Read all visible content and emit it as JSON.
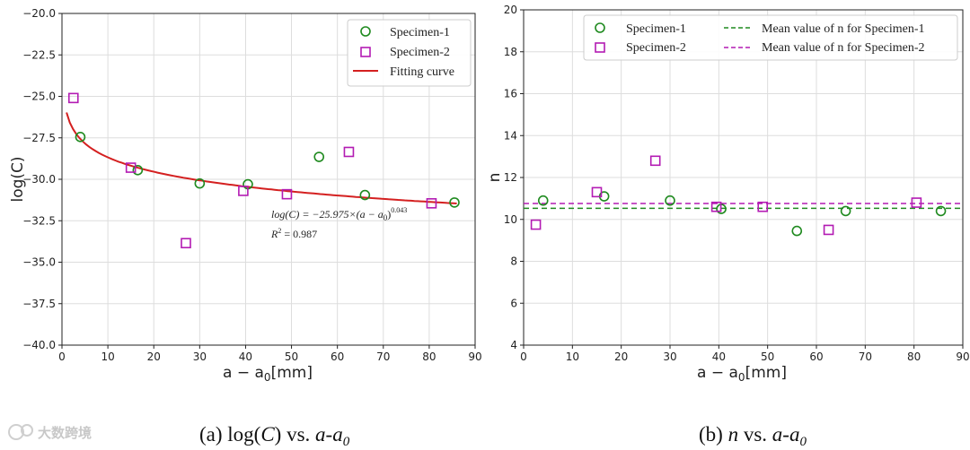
{
  "chart_data": [
    {
      "type": "scatter",
      "id": "a",
      "xlabel": "a − a",
      "xlabel_sub": "0",
      "xlabel_unit": "[mm]",
      "ylabel": "log(C)",
      "xlim": [
        0,
        90
      ],
      "ylim": [
        -40,
        -20
      ],
      "xticks": [
        0,
        10,
        20,
        30,
        40,
        50,
        60,
        70,
        80,
        90
      ],
      "yticks": [
        -40,
        -37.5,
        -35,
        -32.5,
        -30,
        -27.5,
        -25,
        -22.5,
        -20
      ],
      "ytick_labels": [
        "−40.0",
        "−37.5",
        "−35.0",
        "−32.5",
        "−30.0",
        "−27.5",
        "−25.0",
        "−22.5",
        "−20.0"
      ],
      "grid": true,
      "legend_position": "top-right",
      "series": [
        {
          "name": "Specimen-1",
          "marker": "circle",
          "color": "#1f8a1f",
          "x": [
            4,
            16.5,
            30,
            40.5,
            56,
            66,
            85.5
          ],
          "y": [
            -27.45,
            -29.45,
            -30.25,
            -30.3,
            -28.65,
            -30.95,
            -31.4
          ]
        },
        {
          "name": "Specimen-2",
          "marker": "square",
          "color": "#b31bb3",
          "x": [
            2.5,
            15,
            27,
            39.5,
            49,
            62.5,
            80.5
          ],
          "y": [
            -25.1,
            -29.3,
            -33.85,
            -30.7,
            -30.9,
            -28.35,
            -31.45
          ]
        }
      ],
      "fit": {
        "name": "Fitting curve",
        "color": "#d42020",
        "a": -25.975,
        "b": 0.043,
        "x_from": 1,
        "x_to": 86
      },
      "equation": {
        "text": "log(C) = −25.975×(a − a",
        "sub": "0",
        "close": ")",
        "exp": "0.043",
        "r2_label": "R",
        "r2_exp": "2",
        "r2_value": " = 0.987"
      },
      "caption": {
        "prefix": "(a) log(",
        "c": "C",
        "mid": ") vs. ",
        "a": "a",
        "dash": "-",
        "a0": "a",
        "sub": "0"
      }
    },
    {
      "type": "scatter",
      "id": "b",
      "xlabel": "a − a",
      "xlabel_sub": "0",
      "xlabel_unit": "[mm]",
      "ylabel": "n",
      "xlim": [
        0,
        90
      ],
      "ylim": [
        4,
        20
      ],
      "xticks": [
        0,
        10,
        20,
        30,
        40,
        50,
        60,
        70,
        80,
        90
      ],
      "yticks": [
        4,
        6,
        8,
        10,
        12,
        14,
        16,
        18,
        20
      ],
      "ytick_labels": [
        "4",
        "6",
        "8",
        "10",
        "12",
        "14",
        "16",
        "18",
        "20"
      ],
      "grid": true,
      "legend_position": "top-right",
      "series": [
        {
          "name": "Specimen-1",
          "marker": "circle",
          "color": "#1f8a1f",
          "x": [
            4,
            16.5,
            30,
            40.5,
            56,
            66,
            85.5
          ],
          "y": [
            10.9,
            11.1,
            10.9,
            10.5,
            9.45,
            10.4,
            10.4
          ]
        },
        {
          "name": "Specimen-2",
          "marker": "square",
          "color": "#b31bb3",
          "x": [
            2.5,
            15,
            27,
            39.5,
            49,
            62.5,
            80.5
          ],
          "y": [
            9.75,
            11.3,
            12.8,
            10.6,
            10.6,
            9.5,
            10.8
          ]
        }
      ],
      "mean_lines": [
        {
          "name": "Mean value of n for Specimen-1",
          "value": 10.53,
          "color": "#1f8a1f"
        },
        {
          "name": "Mean value of n for Specimen-2",
          "value": 10.76,
          "color": "#b31bb3"
        }
      ],
      "caption": {
        "prefix": "(b) ",
        "n": "n",
        "mid": " vs. ",
        "a": "a",
        "dash": "-",
        "a0": "a",
        "sub": "0"
      }
    }
  ],
  "watermark": "大数跨境"
}
